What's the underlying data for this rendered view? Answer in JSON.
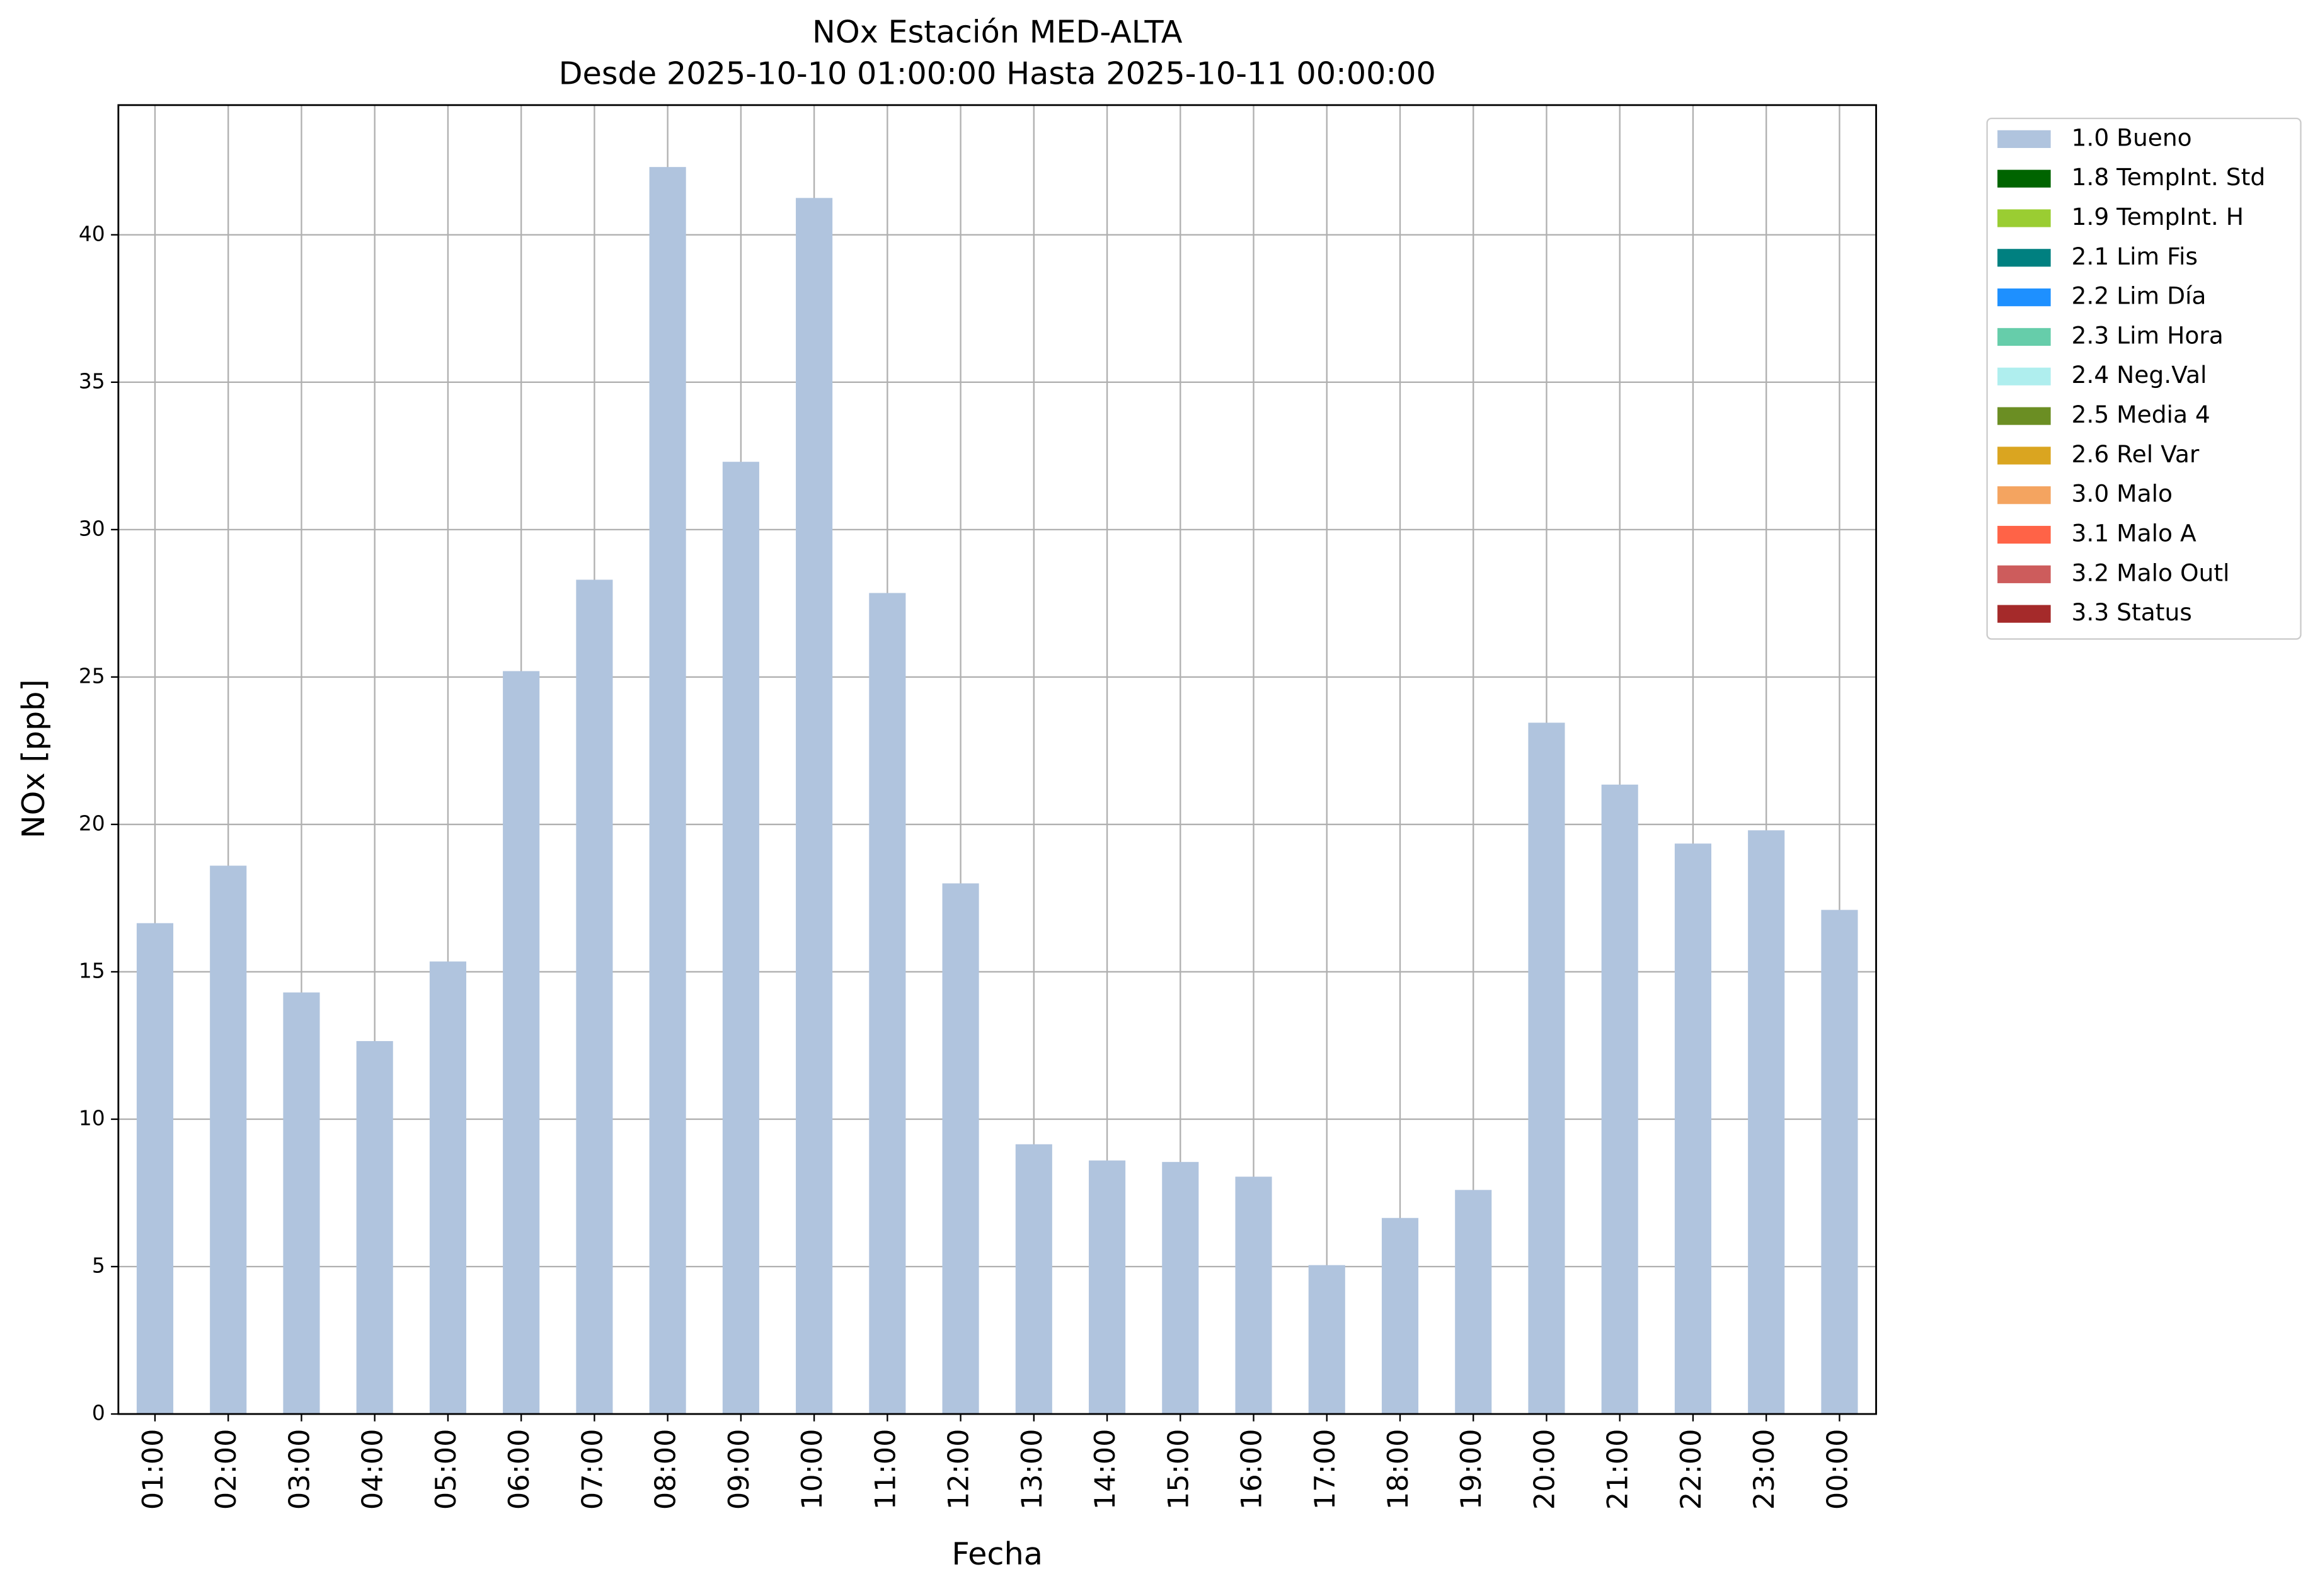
{
  "chart_data": {
    "type": "bar",
    "stacked": true,
    "title": "NOx Estación MED-ALTA",
    "subtitle": "Desde 2025-10-10 01:00:00 Hasta 2025-10-11 00:00:00",
    "x_label": "Fecha",
    "y_label": "NOx [ppb]",
    "categories": [
      "01:00",
      "02:00",
      "03:00",
      "04:00",
      "05:00",
      "06:00",
      "07:00",
      "08:00",
      "09:00",
      "10:00",
      "11:00",
      "12:00",
      "13:00",
      "14:00",
      "15:00",
      "16:00",
      "17:00",
      "18:00",
      "19:00",
      "20:00",
      "21:00",
      "22:00",
      "23:00",
      "00:00"
    ],
    "series": [
      {
        "name": "1.0 Bueno",
        "color": "#b0c4de",
        "values": [
          16.65,
          18.6,
          14.3,
          12.65,
          15.35,
          25.2,
          28.3,
          42.3,
          32.3,
          41.25,
          27.85,
          18.0,
          9.15,
          8.6,
          8.55,
          8.05,
          5.05,
          6.65,
          7.6,
          23.45,
          21.35,
          19.35,
          19.8,
          17.1
        ]
      },
      {
        "name": "1.8 TempInt. Std",
        "color": "#006400",
        "values": [
          null,
          null,
          null,
          null,
          null,
          null,
          null,
          null,
          null,
          null,
          null,
          null,
          null,
          null,
          null,
          null,
          null,
          null,
          null,
          null,
          null,
          null,
          null,
          null
        ]
      },
      {
        "name": "1.9 TempInt. H",
        "color": "#9acd32",
        "values": [
          null,
          null,
          null,
          null,
          null,
          null,
          null,
          null,
          null,
          null,
          null,
          null,
          null,
          null,
          null,
          null,
          null,
          null,
          null,
          null,
          null,
          null,
          null,
          null
        ]
      },
      {
        "name": "2.1 Lim Fis",
        "color": "#008080",
        "values": [
          null,
          null,
          null,
          null,
          null,
          null,
          null,
          null,
          null,
          null,
          null,
          null,
          null,
          null,
          null,
          null,
          null,
          null,
          null,
          null,
          null,
          null,
          null,
          null
        ]
      },
      {
        "name": "2.2 Lim Día",
        "color": "#1e90ff",
        "values": [
          null,
          null,
          null,
          null,
          null,
          null,
          null,
          null,
          null,
          null,
          null,
          null,
          null,
          null,
          null,
          null,
          null,
          null,
          null,
          null,
          null,
          null,
          null,
          null
        ]
      },
      {
        "name": "2.3 Lim Hora",
        "color": "#66cdaa",
        "values": [
          null,
          null,
          null,
          null,
          null,
          null,
          null,
          null,
          null,
          null,
          null,
          null,
          null,
          null,
          null,
          null,
          null,
          null,
          null,
          null,
          null,
          null,
          null,
          null
        ]
      },
      {
        "name": "2.4 Neg.Val",
        "color": "#afeeee",
        "values": [
          null,
          null,
          null,
          null,
          null,
          null,
          null,
          null,
          null,
          null,
          null,
          null,
          null,
          null,
          null,
          null,
          null,
          null,
          null,
          null,
          null,
          null,
          null,
          null
        ]
      },
      {
        "name": "2.5 Media 4",
        "color": "#6b8e23",
        "values": [
          null,
          null,
          null,
          null,
          null,
          null,
          null,
          null,
          null,
          null,
          null,
          null,
          null,
          null,
          null,
          null,
          null,
          null,
          null,
          null,
          null,
          null,
          null,
          null
        ]
      },
      {
        "name": "2.6 Rel Var",
        "color": "#daa520",
        "values": [
          null,
          null,
          null,
          null,
          null,
          null,
          null,
          null,
          null,
          null,
          null,
          null,
          null,
          null,
          null,
          null,
          null,
          null,
          null,
          null,
          null,
          null,
          null,
          null
        ]
      },
      {
        "name": "3.0 Malo",
        "color": "#f4a460",
        "values": [
          null,
          null,
          null,
          null,
          null,
          null,
          null,
          null,
          null,
          null,
          null,
          null,
          null,
          null,
          null,
          null,
          null,
          null,
          null,
          null,
          null,
          null,
          null,
          null
        ]
      },
      {
        "name": "3.1 Malo A",
        "color": "#ff6347",
        "values": [
          null,
          null,
          null,
          null,
          null,
          null,
          null,
          null,
          null,
          null,
          null,
          null,
          null,
          null,
          null,
          null,
          null,
          null,
          null,
          null,
          null,
          null,
          null,
          null
        ]
      },
      {
        "name": "3.2 Malo Outl",
        "color": "#cd5c5c",
        "values": [
          null,
          null,
          null,
          null,
          null,
          null,
          null,
          null,
          null,
          null,
          null,
          null,
          null,
          null,
          null,
          null,
          null,
          null,
          null,
          null,
          null,
          null,
          null,
          null
        ]
      },
      {
        "name": "3.3 Status",
        "color": "#a52a2a",
        "values": [
          null,
          null,
          null,
          null,
          null,
          null,
          null,
          null,
          null,
          null,
          null,
          null,
          null,
          null,
          null,
          null,
          null,
          null,
          null,
          null,
          null,
          null,
          null,
          null
        ]
      }
    ],
    "ylim": [
      0,
      44.4
    ],
    "yticks": [
      0,
      5,
      10,
      15,
      20,
      25,
      30,
      35,
      40
    ],
    "grid": true,
    "legend": "outside right"
  }
}
